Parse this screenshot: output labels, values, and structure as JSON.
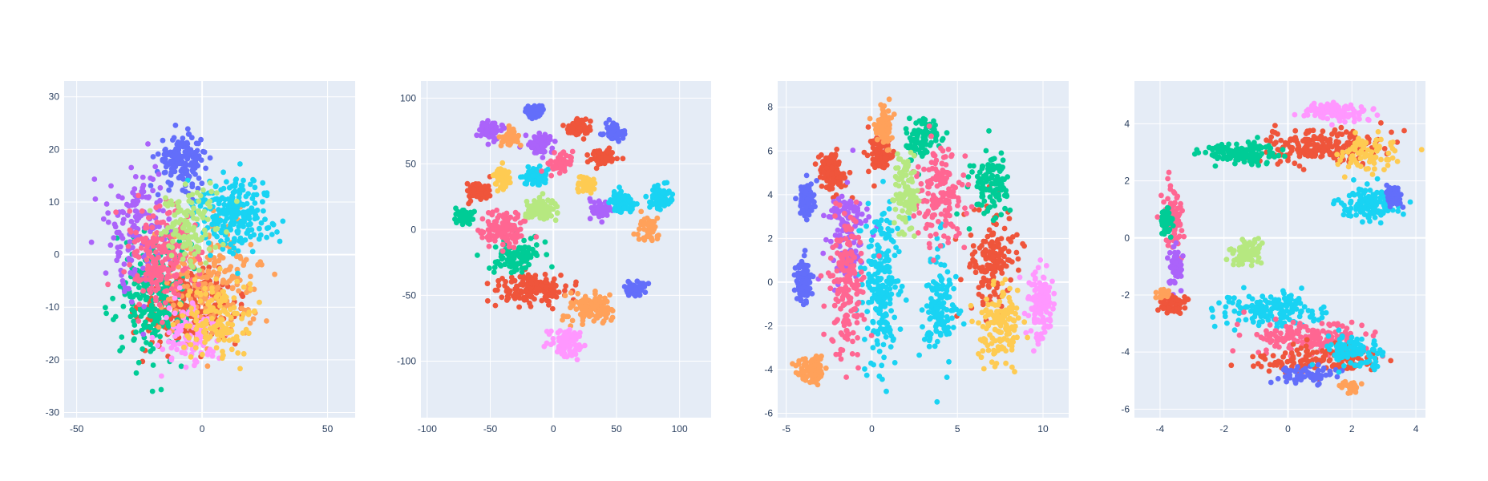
{
  "chart_data": [
    {
      "type": "scatter",
      "xlim": [
        -55,
        61
      ],
      "ylim": [
        -31,
        33
      ],
      "xticks": [
        "-50",
        "0",
        "50"
      ],
      "yticks": [
        "-30",
        "-20",
        "-10",
        "0",
        "10",
        "20",
        "30"
      ],
      "grid": true,
      "clusters": [
        {
          "color": "#636efa",
          "center": [
            -8,
            18
          ],
          "spread": [
            8,
            4
          ],
          "n": 170
        },
        {
          "color": "#ef553b",
          "center": [
            -5,
            -10
          ],
          "spread": [
            16,
            6
          ],
          "n": 260
        },
        {
          "color": "#00cc96",
          "center": [
            -20,
            -8
          ],
          "spread": [
            12,
            10
          ],
          "n": 240
        },
        {
          "color": "#ab63fa",
          "center": [
            -25,
            5
          ],
          "spread": [
            10,
            10
          ],
          "n": 160
        },
        {
          "color": "#ffa15a",
          "center": [
            5,
            -5
          ],
          "spread": [
            16,
            9
          ],
          "n": 200
        },
        {
          "color": "#19d3f3",
          "center": [
            12,
            8
          ],
          "spread": [
            13,
            6
          ],
          "n": 240
        },
        {
          "color": "#ff6692",
          "center": [
            -15,
            0
          ],
          "spread": [
            12,
            8
          ],
          "n": 200
        },
        {
          "color": "#b6e880",
          "center": [
            -5,
            5
          ],
          "spread": [
            10,
            6
          ],
          "n": 120
        },
        {
          "color": "#ff97ff",
          "center": [
            -5,
            -15
          ],
          "spread": [
            10,
            5
          ],
          "n": 100
        },
        {
          "color": "#fecb52",
          "center": [
            5,
            -12
          ],
          "spread": [
            12,
            6
          ],
          "n": 140
        }
      ]
    },
    {
      "type": "scatter",
      "xlim": [
        -105,
        125
      ],
      "ylim": [
        -143,
        113
      ],
      "xticks": [
        "-100",
        "-50",
        "0",
        "50",
        "100"
      ],
      "yticks": [
        "-100",
        "-50",
        "0",
        "50",
        "100"
      ],
      "grid": true,
      "clusters": [
        {
          "color": "#636efa",
          "center": [
            -15,
            90
          ],
          "spread": [
            5,
            4
          ],
          "n": 60
        },
        {
          "color": "#636efa",
          "center": [
            48,
            74
          ],
          "spread": [
            6,
            5
          ],
          "n": 60
        },
        {
          "color": "#636efa",
          "center": [
            65,
            -45
          ],
          "spread": [
            7,
            5
          ],
          "n": 50
        },
        {
          "color": "#ef553b",
          "center": [
            20,
            78
          ],
          "spread": [
            8,
            5
          ],
          "n": 70
        },
        {
          "color": "#ef553b",
          "center": [
            -60,
            30
          ],
          "spread": [
            8,
            7
          ],
          "n": 70
        },
        {
          "color": "#ef553b",
          "center": [
            40,
            55
          ],
          "spread": [
            8,
            5
          ],
          "n": 60
        },
        {
          "color": "#ef553b",
          "center": [
            -15,
            -45
          ],
          "spread": [
            25,
            10
          ],
          "n": 150
        },
        {
          "color": "#00cc96",
          "center": [
            -70,
            10
          ],
          "spread": [
            6,
            5
          ],
          "n": 50
        },
        {
          "color": "#00cc96",
          "center": [
            -30,
            -20
          ],
          "spread": [
            15,
            10
          ],
          "n": 120
        },
        {
          "color": "#ab63fa",
          "center": [
            -50,
            75
          ],
          "spread": [
            8,
            6
          ],
          "n": 60
        },
        {
          "color": "#ab63fa",
          "center": [
            -10,
            65
          ],
          "spread": [
            8,
            6
          ],
          "n": 70
        },
        {
          "color": "#ab63fa",
          "center": [
            38,
            15
          ],
          "spread": [
            7,
            6
          ],
          "n": 60
        },
        {
          "color": "#ffa15a",
          "center": [
            -35,
            70
          ],
          "spread": [
            6,
            6
          ],
          "n": 50
        },
        {
          "color": "#ffa15a",
          "center": [
            75,
            0
          ],
          "spread": [
            7,
            8
          ],
          "n": 50
        },
        {
          "color": "#ffa15a",
          "center": [
            30,
            -60
          ],
          "spread": [
            14,
            10
          ],
          "n": 120
        },
        {
          "color": "#19d3f3",
          "center": [
            -15,
            40
          ],
          "spread": [
            8,
            6
          ],
          "n": 70
        },
        {
          "color": "#19d3f3",
          "center": [
            55,
            20
          ],
          "spread": [
            8,
            7
          ],
          "n": 80
        },
        {
          "color": "#19d3f3",
          "center": [
            85,
            25
          ],
          "spread": [
            8,
            8
          ],
          "n": 60
        },
        {
          "color": "#ff6692",
          "center": [
            -40,
            0
          ],
          "spread": [
            15,
            10
          ],
          "n": 120
        },
        {
          "color": "#ff6692",
          "center": [
            5,
            50
          ],
          "spread": [
            8,
            6
          ],
          "n": 60
        },
        {
          "color": "#b6e880",
          "center": [
            -10,
            15
          ],
          "spread": [
            10,
            6
          ],
          "n": 100
        },
        {
          "color": "#ff97ff",
          "center": [
            10,
            -85
          ],
          "spread": [
            12,
            8
          ],
          "n": 90
        },
        {
          "color": "#fecb52",
          "center": [
            -40,
            40
          ],
          "spread": [
            5,
            8
          ],
          "n": 60
        },
        {
          "color": "#fecb52",
          "center": [
            25,
            35
          ],
          "spread": [
            6,
            6
          ],
          "n": 50
        }
      ]
    },
    {
      "type": "scatter",
      "xlim": [
        -5.5,
        11.5
      ],
      "ylim": [
        -6.2,
        9.2
      ],
      "xticks": [
        "-5",
        "0",
        "5",
        "10"
      ],
      "yticks": [
        "-6",
        "-4",
        "-2",
        "0",
        "2",
        "4",
        "6",
        "8"
      ],
      "grid": true,
      "clusters": [
        {
          "color": "#636efa",
          "center": [
            -3.8,
            3.8
          ],
          "spread": [
            0.4,
            0.6
          ],
          "n": 90
        },
        {
          "color": "#636efa",
          "center": [
            -4,
            0
          ],
          "spread": [
            0.4,
            0.9
          ],
          "n": 90
        },
        {
          "color": "#ef553b",
          "center": [
            -2.3,
            5
          ],
          "spread": [
            0.6,
            0.8
          ],
          "n": 110
        },
        {
          "color": "#ef553b",
          "center": [
            0.5,
            5.8
          ],
          "spread": [
            0.6,
            0.8
          ],
          "n": 90
        },
        {
          "color": "#ef553b",
          "center": [
            7,
            1
          ],
          "spread": [
            1.2,
            2
          ],
          "n": 160
        },
        {
          "color": "#00cc96",
          "center": [
            3,
            6.5
          ],
          "spread": [
            0.8,
            0.8
          ],
          "n": 90
        },
        {
          "color": "#00cc96",
          "center": [
            7,
            4.5
          ],
          "spread": [
            1,
            1.2
          ],
          "n": 120
        },
        {
          "color": "#ab63fa",
          "center": [
            -1.5,
            2
          ],
          "spread": [
            1,
            2
          ],
          "n": 130
        },
        {
          "color": "#ffa15a",
          "center": [
            0.7,
            7.2
          ],
          "spread": [
            0.4,
            0.8
          ],
          "n": 80
        },
        {
          "color": "#ffa15a",
          "center": [
            -3.5,
            -4
          ],
          "spread": [
            0.7,
            0.5
          ],
          "n": 90
        },
        {
          "color": "#19d3f3",
          "center": [
            0.5,
            0
          ],
          "spread": [
            0.9,
            3
          ],
          "n": 220
        },
        {
          "color": "#19d3f3",
          "center": [
            4,
            -1
          ],
          "spread": [
            0.8,
            2
          ],
          "n": 130
        },
        {
          "color": "#ff6692",
          "center": [
            -1.5,
            -0.5
          ],
          "spread": [
            0.9,
            3
          ],
          "n": 170
        },
        {
          "color": "#ff6692",
          "center": [
            4,
            4
          ],
          "spread": [
            1.2,
            2
          ],
          "n": 150
        },
        {
          "color": "#b6e880",
          "center": [
            2,
            4
          ],
          "spread": [
            0.6,
            1.5
          ],
          "n": 110
        },
        {
          "color": "#ff97ff",
          "center": [
            9.8,
            -1
          ],
          "spread": [
            0.6,
            1.3
          ],
          "n": 130
        },
        {
          "color": "#fecb52",
          "center": [
            7.5,
            -2
          ],
          "spread": [
            1,
            1.5
          ],
          "n": 140
        }
      ]
    },
    {
      "type": "scatter",
      "xlim": [
        -4.8,
        4.3
      ],
      "ylim": [
        -6.3,
        5.5
      ],
      "xticks": [
        "-4",
        "-2",
        "0",
        "2",
        "4"
      ],
      "yticks": [
        "-6",
        "-4",
        "-2",
        "0",
        "2",
        "4"
      ],
      "grid": true,
      "clusters": [
        {
          "color": "#ff97ff",
          "center": [
            1.5,
            4.4
          ],
          "spread": [
            0.8,
            0.3
          ],
          "n": 110
        },
        {
          "color": "#ef553b",
          "center": [
            1,
            3.2
          ],
          "spread": [
            1.5,
            0.5
          ],
          "n": 220
        },
        {
          "color": "#00cc96",
          "center": [
            -1.5,
            3
          ],
          "spread": [
            1,
            0.3
          ],
          "n": 120
        },
        {
          "color": "#19d3f3",
          "center": [
            2.5,
            1.2
          ],
          "spread": [
            0.8,
            0.5
          ],
          "n": 120
        },
        {
          "color": "#636efa",
          "center": [
            3.3,
            1.5
          ],
          "spread": [
            0.2,
            0.3
          ],
          "n": 60
        },
        {
          "color": "#ff6692",
          "center": [
            -3.6,
            0.8
          ],
          "spread": [
            0.25,
            1
          ],
          "n": 90
        },
        {
          "color": "#00cc96",
          "center": [
            -3.8,
            0.5
          ],
          "spread": [
            0.15,
            0.4
          ],
          "n": 50
        },
        {
          "color": "#ab63fa",
          "center": [
            -3.5,
            -1
          ],
          "spread": [
            0.2,
            0.6
          ],
          "n": 60
        },
        {
          "color": "#ef553b",
          "center": [
            -3.5,
            -2.3
          ],
          "spread": [
            0.4,
            0.3
          ],
          "n": 60
        },
        {
          "color": "#b6e880",
          "center": [
            -1.3,
            -0.5
          ],
          "spread": [
            0.4,
            0.4
          ],
          "n": 80
        },
        {
          "color": "#19d3f3",
          "center": [
            -0.5,
            -2.5
          ],
          "spread": [
            1.2,
            0.5
          ],
          "n": 150
        },
        {
          "color": "#ff6692",
          "center": [
            0.5,
            -3.5
          ],
          "spread": [
            1.5,
            0.5
          ],
          "n": 150
        },
        {
          "color": "#ef553b",
          "center": [
            1,
            -4.3
          ],
          "spread": [
            1.5,
            0.4
          ],
          "n": 140
        },
        {
          "color": "#636efa",
          "center": [
            0.5,
            -4.8
          ],
          "spread": [
            0.8,
            0.25
          ],
          "n": 70
        },
        {
          "color": "#ffa15a",
          "center": [
            2,
            -5.2
          ],
          "spread": [
            0.3,
            0.2
          ],
          "n": 30
        },
        {
          "color": "#19d3f3",
          "center": [
            2,
            -4
          ],
          "spread": [
            0.8,
            0.5
          ],
          "n": 100
        },
        {
          "color": "#fecb52",
          "center": [
            2.5,
            3
          ],
          "spread": [
            0.8,
            0.5
          ],
          "n": 80
        },
        {
          "color": "#ffa15a",
          "center": [
            -3.9,
            -2
          ],
          "spread": [
            0.2,
            0.15
          ],
          "n": 20
        }
      ]
    }
  ]
}
